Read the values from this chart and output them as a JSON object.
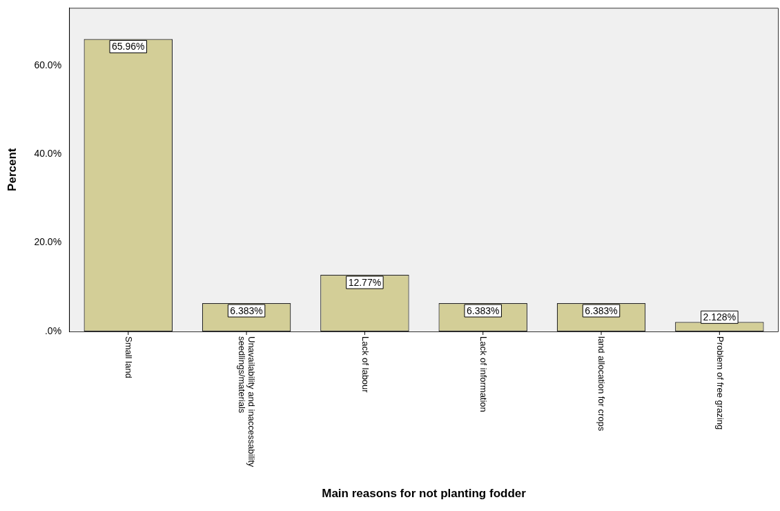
{
  "chart_data": {
    "type": "bar",
    "xlabel": "Main reasons for not planting fodder",
    "ylabel": "Percent",
    "categories": [
      "Small land",
      "Unavailability and inaccessability seedlings/materials",
      "Lack of labour",
      "Lack of information",
      "land allocation for crops",
      "Problem of free grazing"
    ],
    "values": [
      65.96,
      6.383,
      12.77,
      6.383,
      6.383,
      2.128
    ],
    "value_labels": [
      "65.96%",
      "6.383%",
      "12.77%",
      "6.383%",
      "6.383%",
      "2.128%"
    ],
    "color": "#d3ce97",
    "ylim": [
      0,
      73
    ],
    "yticks": [
      {
        "value": 0,
        "label": ".0%"
      },
      {
        "value": 20,
        "label": "20.0%"
      },
      {
        "value": 40,
        "label": "40.0%"
      },
      {
        "value": 60,
        "label": "60.0%"
      }
    ],
    "grid": false,
    "legend": false
  }
}
